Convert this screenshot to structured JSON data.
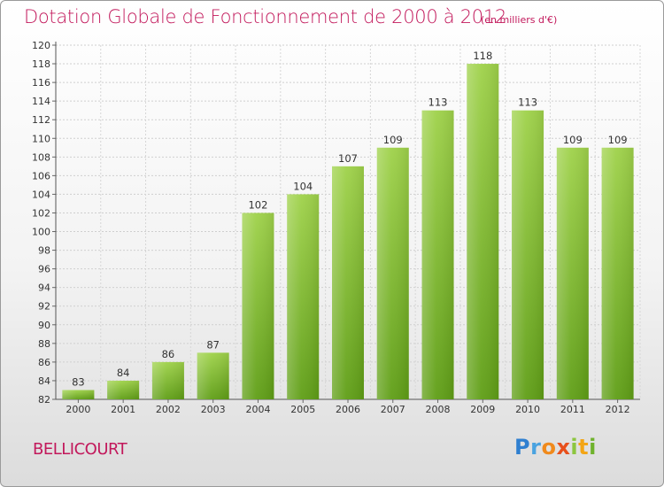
{
  "chart_data": {
    "type": "bar",
    "title": "Dotation Globale de Fonctionnement de 2000 à 2012",
    "subtitle": "(en milliers d'€)",
    "categories": [
      "2000",
      "2001",
      "2002",
      "2003",
      "2004",
      "2005",
      "2006",
      "2007",
      "2008",
      "2009",
      "2010",
      "2011",
      "2012"
    ],
    "values": [
      83,
      84,
      86,
      87,
      102,
      104,
      107,
      109,
      113,
      118,
      113,
      109,
      109
    ],
    "ylim": [
      82,
      120
    ],
    "yticks": [
      82,
      84,
      86,
      88,
      90,
      92,
      94,
      96,
      98,
      100,
      102,
      104,
      106,
      108,
      110,
      112,
      114,
      116,
      118,
      120
    ],
    "grid": true,
    "xlabel": "",
    "ylabel": "",
    "bar_color": "#7cba2e"
  },
  "commune": "BELLICOURT",
  "logo": {
    "text": "Proxiti",
    "letters": [
      "P",
      "r",
      "o",
      "x",
      "i",
      "t",
      "i"
    ]
  },
  "colors": {
    "title": "#c2185b",
    "bar_top": "#9fd24a",
    "bar_bottom": "#5f9e16"
  }
}
